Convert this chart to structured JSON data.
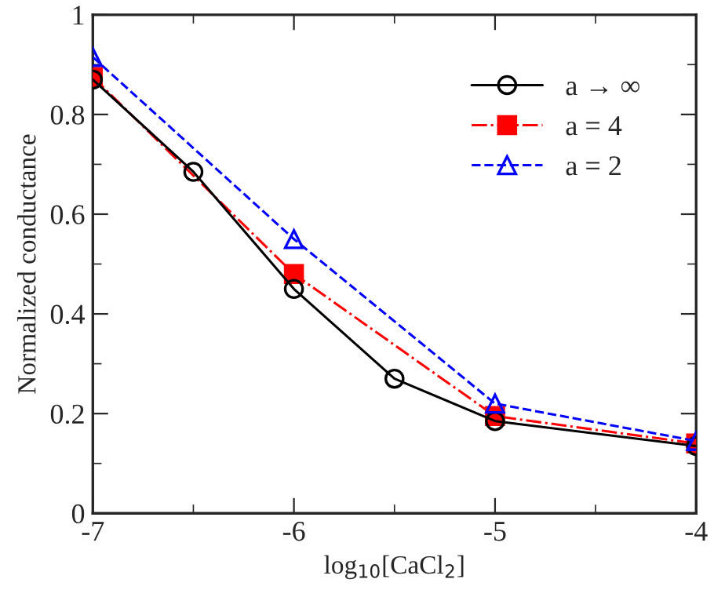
{
  "chart_data": {
    "type": "line",
    "xlabel": "log$_{10}$[CaCl$_{2}$]",
    "ylabel": "Normalized conductance",
    "xlim": [
      -7,
      -4
    ],
    "xticks": [
      -7,
      -6,
      -5,
      -4
    ],
    "ylim": [
      0,
      1
    ],
    "yticks": [
      0,
      0.2,
      0.4,
      0.6,
      0.8,
      1
    ],
    "legend": "top right",
    "grid": false,
    "series": [
      {
        "name": "a → ∞",
        "color": "#000000",
        "marker": "circle",
        "line_style": "solid",
        "x": [
          -7,
          -6.5,
          -6,
          -5.5,
          -5,
          -4
        ],
        "values": [
          0.87,
          0.685,
          0.45,
          0.27,
          0.185,
          0.135
        ]
      },
      {
        "name": "a = 4",
        "color": "#ff0000",
        "marker": "square",
        "line_style": "dashdot",
        "x": [
          -7,
          -6,
          -5,
          -4
        ],
        "values": [
          0.875,
          0.48,
          0.195,
          0.14
        ]
      },
      {
        "name": "a = 2",
        "color": "#0000ff",
        "marker": "triangle",
        "line_style": "dashed",
        "x": [
          -7,
          -6,
          -5,
          -4
        ],
        "values": [
          0.915,
          0.55,
          0.22,
          0.145
        ]
      }
    ]
  }
}
